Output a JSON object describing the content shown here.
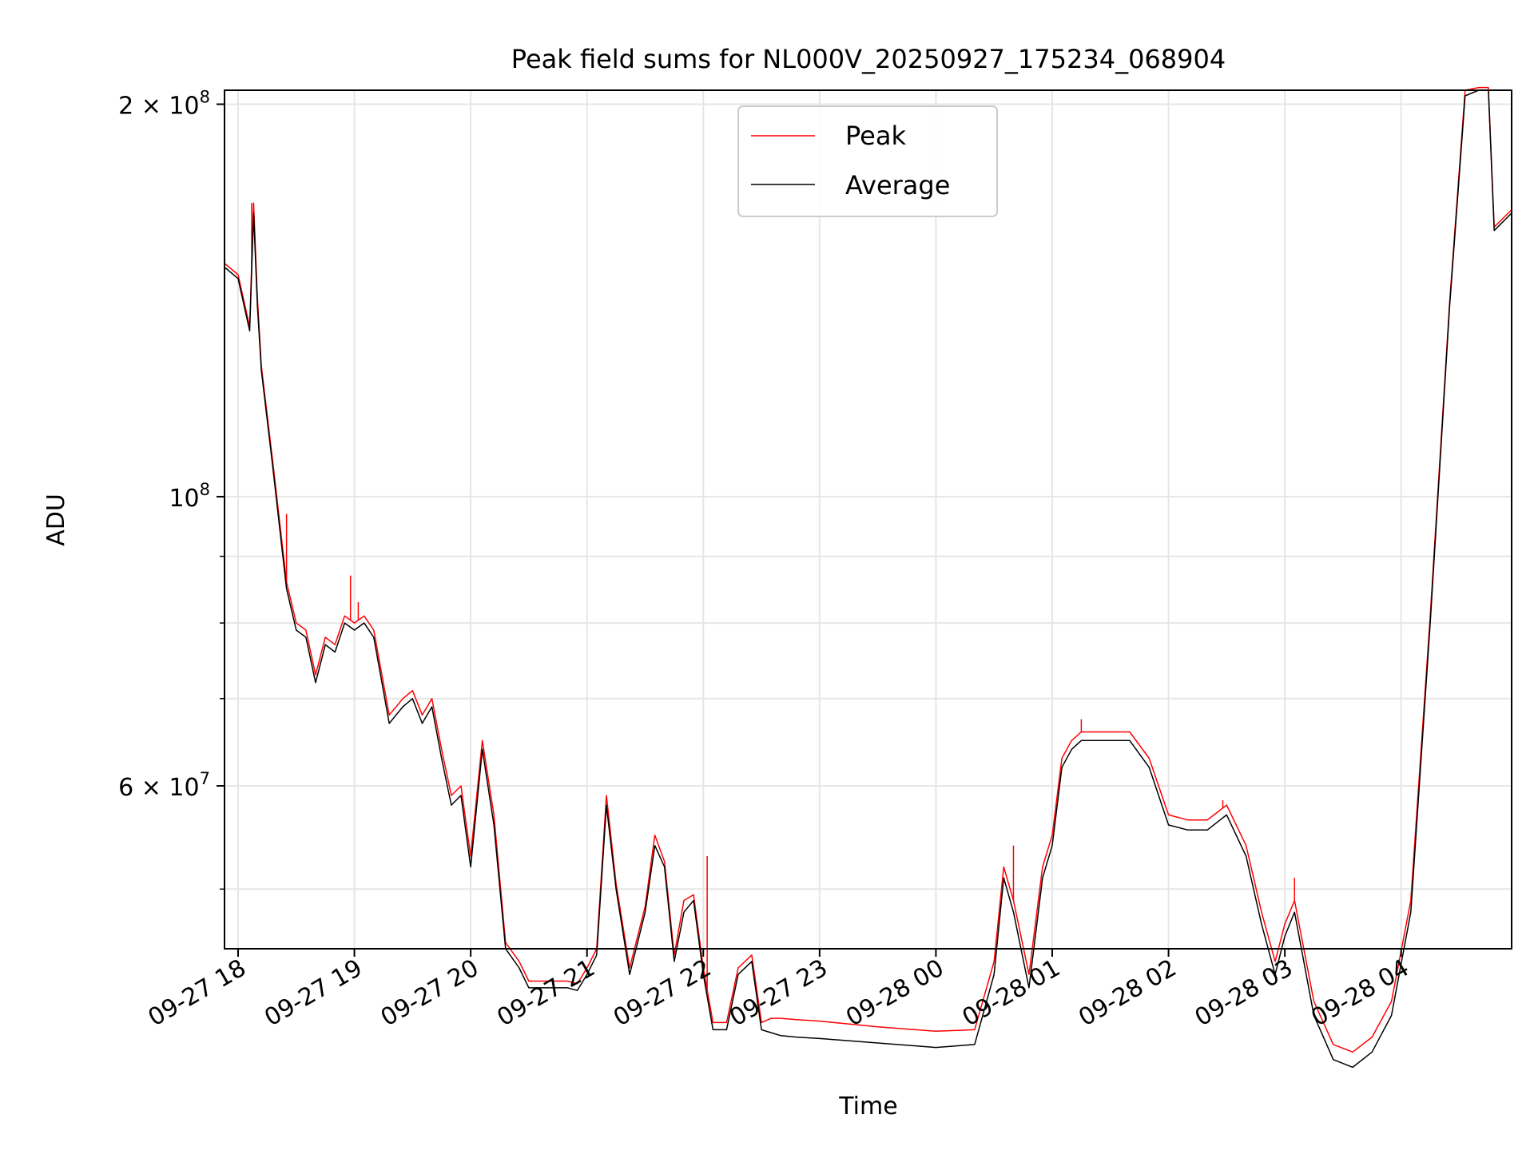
{
  "chart_data": {
    "type": "line",
    "title": "Peak field sums for NL000V_20250927_175234_068904",
    "xlabel": "Time",
    "ylabel": "ADU",
    "yscale": "log",
    "ylim": [
      45000000,
      205000000
    ],
    "xlim": [
      "2025-09-27 17:53",
      "2025-09-28 04:57"
    ],
    "grid": true,
    "legend_position": "top-center",
    "x_ticks": [
      "09-27 18",
      "09-27 19",
      "09-27 20",
      "09-27 21",
      "09-27 22",
      "09-27 23",
      "09-28 00",
      "09-28 01",
      "09-28 02",
      "09-28 03",
      "09-28 04"
    ],
    "y_major_ticks": [
      {
        "value": 200000000,
        "mantissa": "2",
        "exponent": "8"
      },
      {
        "value": 100000000,
        "mantissa": "",
        "exponent": "8"
      },
      {
        "value": 60000000,
        "mantissa": "6",
        "exponent": "7"
      }
    ],
    "y_minor_ticks": [
      50000000,
      70000000,
      80000000,
      90000000
    ],
    "series": [
      {
        "name": "Peak",
        "color": "#ff0000"
      },
      {
        "name": "Average",
        "color": "#000000"
      }
    ],
    "x": [
      "2025-09-27 17:53",
      "2025-09-27 18:00",
      "2025-09-27 18:06",
      "2025-09-27 18:08",
      "2025-09-27 18:10",
      "2025-09-27 18:12",
      "2025-09-27 18:18",
      "2025-09-27 18:25",
      "2025-09-27 18:30",
      "2025-09-27 18:35",
      "2025-09-27 18:40",
      "2025-09-27 18:45",
      "2025-09-27 18:50",
      "2025-09-27 18:55",
      "2025-09-27 19:00",
      "2025-09-27 19:05",
      "2025-09-27 19:10",
      "2025-09-27 19:18",
      "2025-09-27 19:25",
      "2025-09-27 19:30",
      "2025-09-27 19:35",
      "2025-09-27 19:40",
      "2025-09-27 19:45",
      "2025-09-27 19:50",
      "2025-09-27 19:55",
      "2025-09-27 20:00",
      "2025-09-27 20:06",
      "2025-09-27 20:12",
      "2025-09-27 20:18",
      "2025-09-27 20:25",
      "2025-09-27 20:30",
      "2025-09-27 20:40",
      "2025-09-27 20:50",
      "2025-09-27 20:55",
      "2025-09-27 21:00",
      "2025-09-27 21:05",
      "2025-09-27 21:10",
      "2025-09-27 21:15",
      "2025-09-27 21:22",
      "2025-09-27 21:30",
      "2025-09-27 21:35",
      "2025-09-27 21:40",
      "2025-09-27 21:45",
      "2025-09-27 21:50",
      "2025-09-27 21:55",
      "2025-09-27 22:00",
      "2025-09-27 22:05",
      "2025-09-27 22:12",
      "2025-09-27 22:18",
      "2025-09-27 22:25",
      "2025-09-27 22:30",
      "2025-09-27 22:35",
      "2025-09-27 22:40",
      "2025-09-27 22:48",
      "2025-09-27 23:00",
      "2025-09-27 23:30",
      "2025-09-28 00:00",
      "2025-09-28 00:20",
      "2025-09-28 00:30",
      "2025-09-28 00:35",
      "2025-09-28 00:40",
      "2025-09-28 00:48",
      "2025-09-28 00:55",
      "2025-09-28 01:00",
      "2025-09-28 01:05",
      "2025-09-28 01:10",
      "2025-09-28 01:15",
      "2025-09-28 01:25",
      "2025-09-28 01:30",
      "2025-09-28 01:40",
      "2025-09-28 01:50",
      "2025-09-28 02:00",
      "2025-09-28 02:10",
      "2025-09-28 02:20",
      "2025-09-28 02:30",
      "2025-09-28 02:40",
      "2025-09-28 02:48",
      "2025-09-28 02:55",
      "2025-09-28 03:00",
      "2025-09-28 03:05",
      "2025-09-28 03:15",
      "2025-09-28 03:25",
      "2025-09-28 03:35",
      "2025-09-28 03:45",
      "2025-09-28 03:55",
      "2025-09-28 04:05",
      "2025-09-28 04:15",
      "2025-09-28 04:25",
      "2025-09-28 04:33",
      "2025-09-28 04:40",
      "2025-09-28 04:45",
      "2025-09-28 04:48",
      "2025-09-28 04:57"
    ],
    "average": [
      150000000,
      147000000,
      134000000,
      165000000,
      140000000,
      125000000,
      105000000,
      85000000,
      79000000,
      78000000,
      72000000,
      77000000,
      76000000,
      80000000,
      79000000,
      80000000,
      78000000,
      67000000,
      69000000,
      70000000,
      67000000,
      69000000,
      63000000,
      58000000,
      59000000,
      52000000,
      64000000,
      56000000,
      45000000,
      43500000,
      42000000,
      42000000,
      42000000,
      41800000,
      43000000,
      44500000,
      58000000,
      50000000,
      43000000,
      48000000,
      54000000,
      52000000,
      44000000,
      48000000,
      49000000,
      43000000,
      39000000,
      39000000,
      43000000,
      44000000,
      39000000,
      38800000,
      38600000,
      38500000,
      38400000,
      38100000,
      37800000,
      38000000,
      43000000,
      51000000,
      48000000,
      42000000,
      51000000,
      54000000,
      62000000,
      64000000,
      65000000,
      65000000,
      65000000,
      65000000,
      62000000,
      56000000,
      55500000,
      55500000,
      57000000,
      53000000,
      47000000,
      43000000,
      46000000,
      48000000,
      40000000,
      37000000,
      36500000,
      37500000,
      40000000,
      48000000,
      80000000,
      140000000,
      203000000,
      205000000,
      205000000,
      160000000,
      165000000
    ],
    "peak": [
      151000000,
      148000000,
      135000000,
      168000000,
      142000000,
      126000000,
      106000000,
      86000000,
      80000000,
      79000000,
      73000000,
      78000000,
      77000000,
      81000000,
      80000000,
      81000000,
      79000000,
      68000000,
      70000000,
      71000000,
      68000000,
      70000000,
      64000000,
      59000000,
      60000000,
      53000000,
      65000000,
      57000000,
      45500000,
      44000000,
      42500000,
      42500000,
      42500000,
      42300000,
      43500000,
      45000000,
      59000000,
      50500000,
      43500000,
      48500000,
      55000000,
      52500000,
      44500000,
      49000000,
      49500000,
      43500000,
      39500000,
      39500000,
      43500000,
      44500000,
      39500000,
      39800000,
      39800000,
      39700000,
      39600000,
      39200000,
      38900000,
      39000000,
      44000000,
      52000000,
      49000000,
      43000000,
      52000000,
      55000000,
      63000000,
      65000000,
      66000000,
      66000000,
      66000000,
      66000000,
      63000000,
      57000000,
      56500000,
      56500000,
      58000000,
      54000000,
      48000000,
      44000000,
      47000000,
      49000000,
      41000000,
      38000000,
      37500000,
      38500000,
      41000000,
      49000000,
      81000000,
      141000000,
      205000000,
      206000000,
      206000000,
      161000000,
      166000000
    ],
    "peak_spikes": [
      {
        "x": "2025-09-27 18:07",
        "value": 168000000
      },
      {
        "x": "2025-09-27 18:25",
        "value": 97000000
      },
      {
        "x": "2025-09-27 18:58",
        "value": 87000000
      },
      {
        "x": "2025-09-27 19:02",
        "value": 83000000
      },
      {
        "x": "2025-09-27 22:02",
        "value": 53000000
      },
      {
        "x": "2025-09-28 00:40",
        "value": 54000000
      },
      {
        "x": "2025-09-28 01:15",
        "value": 67500000
      },
      {
        "x": "2025-09-28 02:28",
        "value": 58500000
      },
      {
        "x": "2025-09-28 03:05",
        "value": 51000000
      }
    ]
  }
}
